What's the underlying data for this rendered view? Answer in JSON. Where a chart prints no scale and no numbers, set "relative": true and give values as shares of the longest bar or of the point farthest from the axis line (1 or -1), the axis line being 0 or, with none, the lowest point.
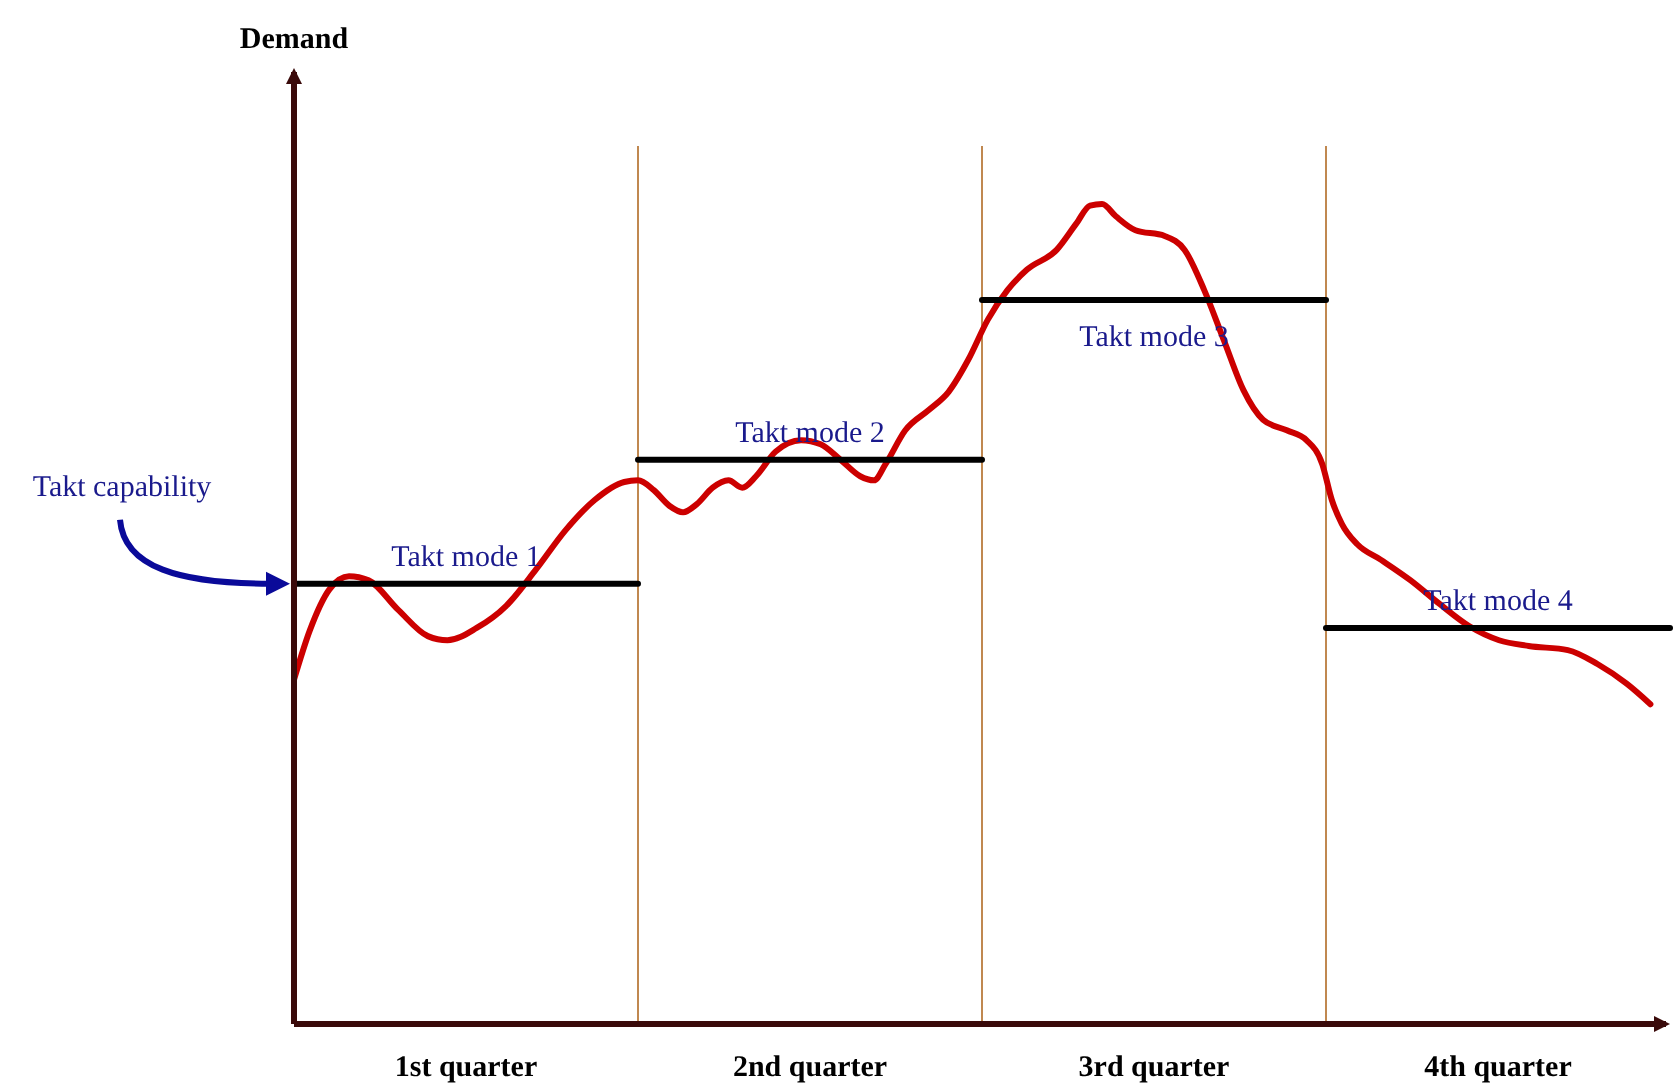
{
  "chart_data": {
    "type": "line",
    "relative": true,
    "ylabel": "Demand",
    "xlim": [
      0,
      4
    ],
    "xticks": [
      {
        "value": 0.5,
        "label": "1st quarter"
      },
      {
        "value": 1.5,
        "label": "2nd quarter"
      },
      {
        "value": 2.5,
        "label": "3rd quarter"
      },
      {
        "value": 3.5,
        "label": "4th quarter"
      }
    ],
    "series": [
      {
        "color": "#cc0000",
        "x": [
          0,
          0.046,
          0.103,
          0.16,
          0.217,
          0.303,
          0.389,
          0.446,
          0.531,
          0.617,
          0.703,
          0.789,
          0.874,
          0.96,
          1.0,
          1.046,
          1.091,
          1.131,
          1.171,
          1.217,
          1.263,
          1.303,
          1.343,
          1.4,
          1.474,
          1.531,
          1.589,
          1.646,
          1.686,
          1.72,
          1.777,
          1.846,
          1.903,
          1.96,
          2.017,
          2.074,
          2.131,
          2.217,
          2.274,
          2.314,
          2.349,
          2.389,
          2.446,
          2.531,
          2.589,
          2.646,
          2.703,
          2.76,
          2.817,
          2.886,
          2.943,
          2.989,
          3.017,
          3.046,
          3.091,
          3.16,
          3.246,
          3.331,
          3.417,
          3.503,
          3.589,
          3.703,
          3.789,
          3.874,
          3.943
        ],
        "values": [
          0.42,
          0.48,
          0.53,
          0.546,
          0.541,
          0.505,
          0.473,
          0.468,
          0.483,
          0.51,
          0.554,
          0.602,
          0.639,
          0.661,
          0.663,
          0.651,
          0.632,
          0.624,
          0.634,
          0.654,
          0.663,
          0.654,
          0.668,
          0.698,
          0.712,
          0.707,
          0.688,
          0.668,
          0.663,
          0.683,
          0.724,
          0.749,
          0.771,
          0.81,
          0.859,
          0.895,
          0.92,
          0.944,
          0.976,
          0.998,
          1.0,
          0.985,
          0.968,
          0.961,
          0.944,
          0.895,
          0.834,
          0.773,
          0.737,
          0.724,
          0.712,
          0.683,
          0.639,
          0.61,
          0.585,
          0.566,
          0.541,
          0.512,
          0.485,
          0.468,
          0.461,
          0.456,
          0.439,
          0.415,
          0.39
        ]
      },
      {
        "name": "Takt mode 1",
        "color": "#000000",
        "x": [
          0,
          1
        ],
        "values": [
          0.537,
          0.537
        ]
      },
      {
        "name": "Takt mode 2",
        "color": "#000000",
        "x": [
          1,
          2
        ],
        "values": [
          0.688,
          0.688
        ]
      },
      {
        "name": "Takt mode 3",
        "color": "#000000",
        "x": [
          2,
          3
        ],
        "values": [
          0.883,
          0.883
        ]
      },
      {
        "name": "Takt mode 4",
        "color": "#000000",
        "x": [
          3,
          4
        ],
        "values": [
          0.483,
          0.483
        ]
      }
    ],
    "ref_lines": [
      {
        "axis": "x",
        "value": 1,
        "color": "#c08850"
      },
      {
        "axis": "x",
        "value": 2,
        "color": "#c08850"
      },
      {
        "axis": "x",
        "value": 3,
        "color": "#c08850"
      }
    ],
    "annotations": [
      "Takt capability"
    ]
  }
}
